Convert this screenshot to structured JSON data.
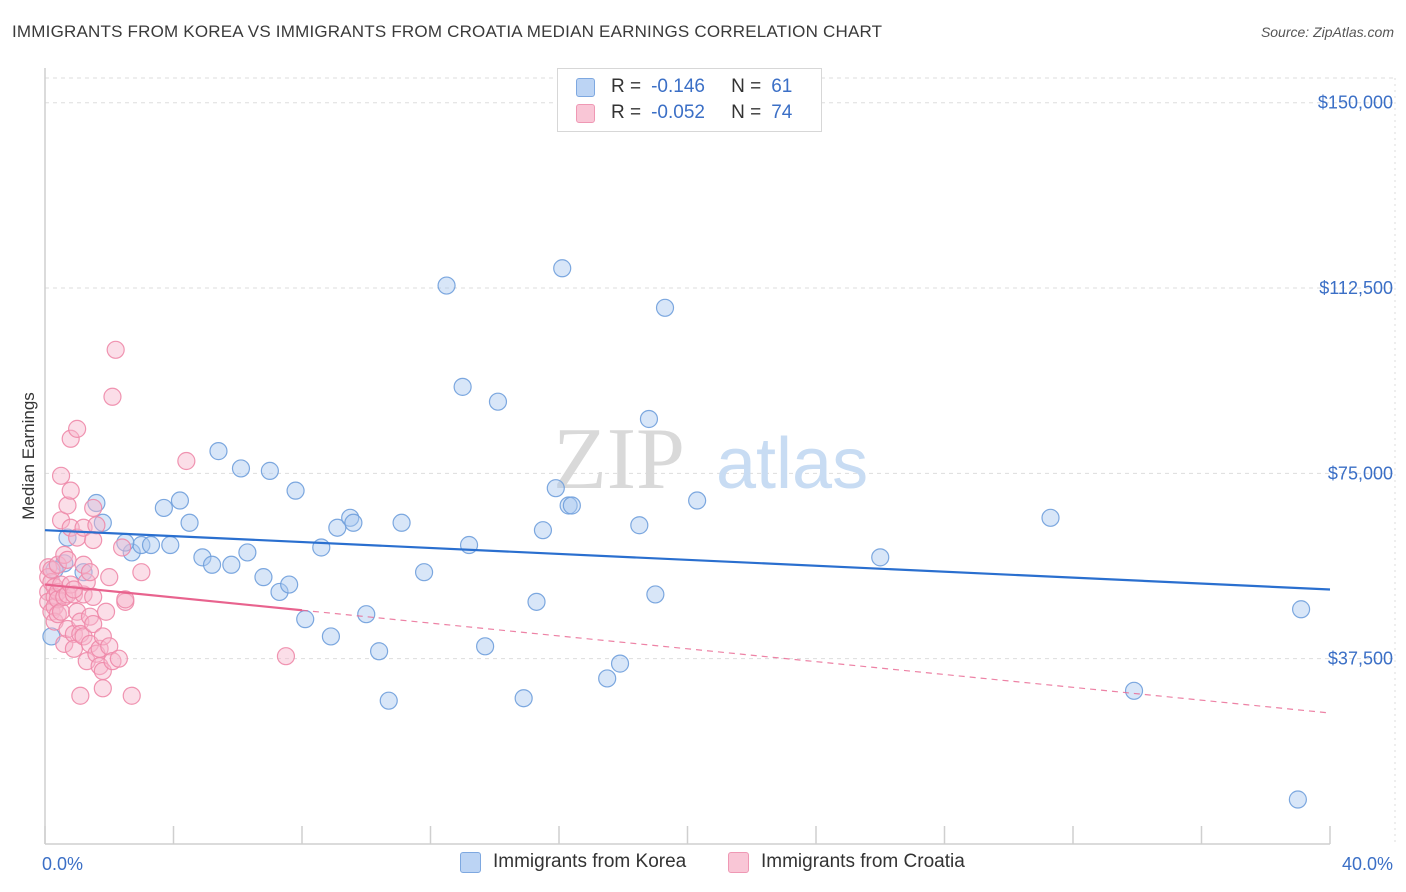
{
  "title": "IMMIGRANTS FROM KOREA VS IMMIGRANTS FROM CROATIA MEDIAN EARNINGS CORRELATION CHART",
  "source": "Source: ZipAtlas.com",
  "watermark": {
    "zip": "ZIP",
    "atlas": "atlas"
  },
  "legend": {
    "korea": {
      "r_label": "R =",
      "r_value": "-0.146",
      "n_label": "N =",
      "n_value": "61"
    },
    "croatia": {
      "r_label": "R =",
      "r_value": "-0.052",
      "n_label": "N =",
      "n_value": "74"
    }
  },
  "colors": {
    "korea_fill": "#a9c8ef",
    "korea_stroke": "#6f9fdc",
    "korea_line": "#2a6fcf",
    "croatia_fill": "#f6b6cb",
    "croatia_stroke": "#ee88a9",
    "croatia_line": "#e8638e",
    "grid": "#dddddd",
    "tick_text": "#3b6fc6"
  },
  "chart_data": {
    "type": "scatter",
    "title": "IMMIGRANTS FROM KOREA VS IMMIGRANTS FROM CROATIA MEDIAN EARNINGS CORRELATION CHART",
    "xlabel": "",
    "ylabel": "Median Earnings",
    "xlim": [
      0,
      40
    ],
    "ylim": [
      0,
      155000
    ],
    "x_tick_labels": [
      "0.0%",
      "40.0%"
    ],
    "y_ticks": [
      37500,
      75000,
      112500,
      150000
    ],
    "y_tick_labels": [
      "$37,500",
      "$75,000",
      "$112,500",
      "$150,000"
    ],
    "legend_position": "top-center",
    "series": [
      {
        "name": "Immigrants from Korea",
        "r": -0.146,
        "n": 61,
        "trend": {
          "x": [
            0,
            40
          ],
          "y": [
            63500,
            51500
          ],
          "dashed_from": null
        },
        "points": [
          [
            0.2,
            42000
          ],
          [
            0.6,
            56800
          ],
          [
            0.7,
            62000
          ],
          [
            1.2,
            55000
          ],
          [
            1.6,
            69000
          ],
          [
            1.8,
            65000
          ],
          [
            2.7,
            59000
          ],
          [
            3.0,
            60500
          ],
          [
            3.3,
            60500
          ],
          [
            3.7,
            68000
          ],
          [
            3.9,
            60500
          ],
          [
            4.2,
            69500
          ],
          [
            4.5,
            65000
          ],
          [
            4.9,
            58000
          ],
          [
            5.2,
            56500
          ],
          [
            5.4,
            79500
          ],
          [
            5.8,
            56500
          ],
          [
            6.1,
            76000
          ],
          [
            6.3,
            59000
          ],
          [
            6.8,
            54000
          ],
          [
            7.0,
            75500
          ],
          [
            7.3,
            51000
          ],
          [
            7.6,
            52500
          ],
          [
            7.8,
            71500
          ],
          [
            8.1,
            45500
          ],
          [
            8.6,
            60000
          ],
          [
            8.9,
            42000
          ],
          [
            9.1,
            64000
          ],
          [
            9.5,
            66000
          ],
          [
            9.6,
            65000
          ],
          [
            10.0,
            46500
          ],
          [
            10.4,
            39000
          ],
          [
            10.7,
            29000
          ],
          [
            11.1,
            65000
          ],
          [
            11.8,
            55000
          ],
          [
            12.5,
            113000
          ],
          [
            13.0,
            92500
          ],
          [
            13.2,
            60500
          ],
          [
            13.7,
            40000
          ],
          [
            14.1,
            89500
          ],
          [
            14.9,
            29500
          ],
          [
            15.3,
            49000
          ],
          [
            15.5,
            63500
          ],
          [
            15.9,
            72000
          ],
          [
            16.1,
            116500
          ],
          [
            16.3,
            68500
          ],
          [
            16.4,
            68500
          ],
          [
            17.5,
            33500
          ],
          [
            17.9,
            36500
          ],
          [
            18.5,
            64500
          ],
          [
            18.8,
            86000
          ],
          [
            19.0,
            50500
          ],
          [
            19.3,
            108500
          ],
          [
            20.3,
            69500
          ],
          [
            26.0,
            58000
          ],
          [
            31.3,
            66000
          ],
          [
            33.9,
            31000
          ],
          [
            39.1,
            47500
          ],
          [
            39.0,
            9000
          ],
          [
            0.3,
            55500
          ],
          [
            2.5,
            61000
          ]
        ]
      },
      {
        "name": "Immigrants from Croatia",
        "r": -0.052,
        "n": 74,
        "trend": {
          "x": [
            0,
            40
          ],
          "y": [
            52500,
            26500
          ],
          "dashed_from": 8
        },
        "points": [
          [
            0.1,
            56000
          ],
          [
            0.1,
            54000
          ],
          [
            0.1,
            51000
          ],
          [
            0.1,
            49000
          ],
          [
            0.2,
            47000
          ],
          [
            0.2,
            53000
          ],
          [
            0.2,
            55500
          ],
          [
            0.3,
            52000
          ],
          [
            0.3,
            50000
          ],
          [
            0.3,
            48000
          ],
          [
            0.3,
            45000
          ],
          [
            0.4,
            56500
          ],
          [
            0.4,
            51000
          ],
          [
            0.4,
            49500
          ],
          [
            0.4,
            46500
          ],
          [
            0.5,
            74500
          ],
          [
            0.5,
            65500
          ],
          [
            0.5,
            52500
          ],
          [
            0.5,
            47000
          ],
          [
            0.6,
            40500
          ],
          [
            0.6,
            50000
          ],
          [
            0.6,
            58500
          ],
          [
            0.7,
            68500
          ],
          [
            0.7,
            57500
          ],
          [
            0.7,
            50500
          ],
          [
            0.7,
            43500
          ],
          [
            0.8,
            71500
          ],
          [
            0.8,
            82000
          ],
          [
            0.8,
            64000
          ],
          [
            0.8,
            52500
          ],
          [
            0.9,
            42500
          ],
          [
            0.9,
            50500
          ],
          [
            0.9,
            39500
          ],
          [
            1.0,
            84000
          ],
          [
            1.0,
            62000
          ],
          [
            1.0,
            47000
          ],
          [
            1.1,
            45000
          ],
          [
            1.1,
            30000
          ],
          [
            1.1,
            42500
          ],
          [
            1.2,
            64000
          ],
          [
            1.2,
            56500
          ],
          [
            1.2,
            50500
          ],
          [
            1.2,
            42000
          ],
          [
            1.3,
            37000
          ],
          [
            1.3,
            53000
          ],
          [
            1.4,
            46000
          ],
          [
            1.4,
            40500
          ],
          [
            1.4,
            55000
          ],
          [
            1.5,
            68000
          ],
          [
            1.5,
            61500
          ],
          [
            1.5,
            50000
          ],
          [
            1.5,
            44500
          ],
          [
            1.6,
            64500
          ],
          [
            1.6,
            38500
          ],
          [
            1.7,
            36000
          ],
          [
            1.7,
            39500
          ],
          [
            1.8,
            35000
          ],
          [
            1.8,
            42000
          ],
          [
            1.8,
            31500
          ],
          [
            1.9,
            47000
          ],
          [
            2.0,
            40000
          ],
          [
            2.0,
            54000
          ],
          [
            2.1,
            37000
          ],
          [
            2.1,
            90500
          ],
          [
            2.2,
            100000
          ],
          [
            2.3,
            37500
          ],
          [
            2.4,
            60000
          ],
          [
            2.5,
            49000
          ],
          [
            2.5,
            49500
          ],
          [
            2.7,
            30000
          ],
          [
            3.0,
            55000
          ],
          [
            4.4,
            77500
          ],
          [
            7.5,
            38000
          ],
          [
            0.9,
            51500
          ]
        ]
      }
    ]
  }
}
